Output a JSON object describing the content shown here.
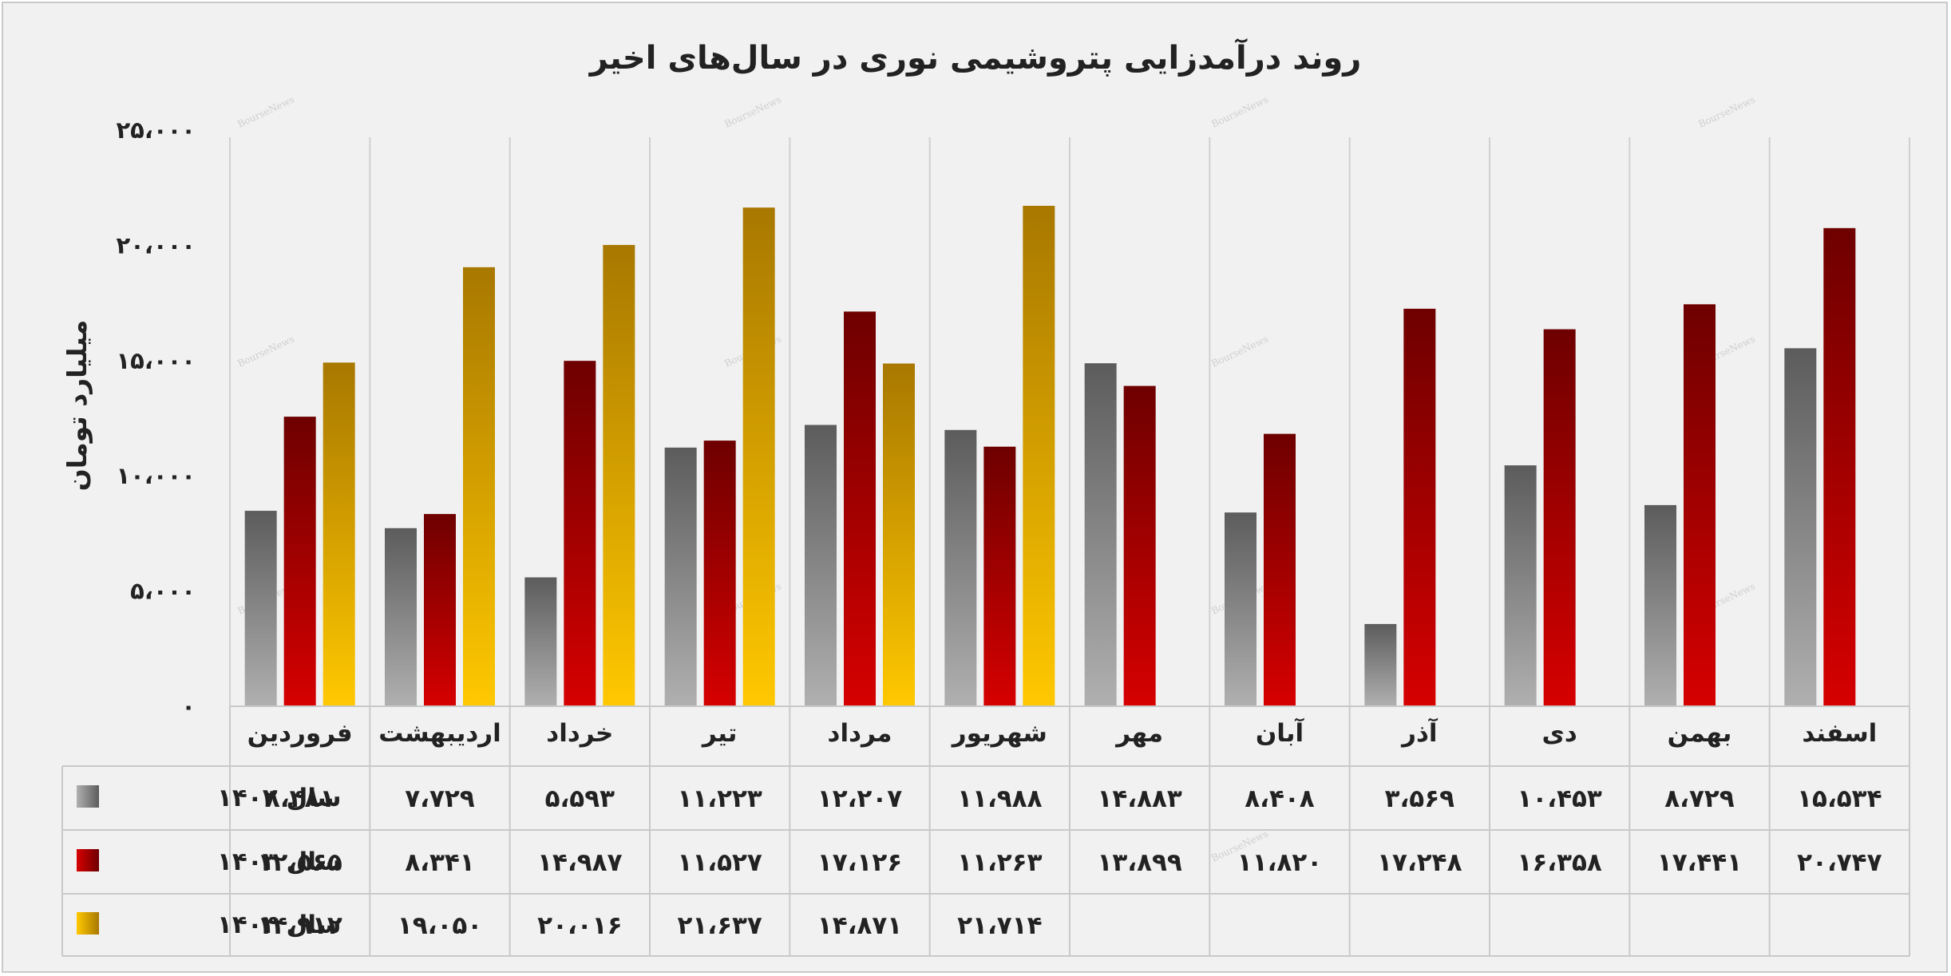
{
  "chart_data": {
    "type": "bar",
    "title": "روند درآمدزایی پتروشیمی نوری در سال‌های اخیر",
    "ylabel": "میلیارد تومان",
    "ylim": [
      0,
      25000
    ],
    "yticks": [
      "۰",
      "۵،۰۰۰",
      "۱۰،۰۰۰",
      "۱۵،۰۰۰",
      "۲۰،۰۰۰",
      "۲۵،۰۰۰"
    ],
    "categories": [
      "فروردین",
      "اردیبهشت",
      "خرداد",
      "تیر",
      "مرداد",
      "شهریور",
      "مهر",
      "آبان",
      "آذر",
      "دی",
      "بهمن",
      "اسفند"
    ],
    "series": [
      {
        "name": "سال ۱۴۰۲",
        "colors": [
          "#5c5c5c",
          "#b0b0b0"
        ],
        "values": [
          8481,
          7729,
          5593,
          11223,
          12207,
          11988,
          14883,
          8408,
          3569,
          10453,
          8729,
          15534
        ],
        "labels": [
          "۸،۴۸۱",
          "۷،۷۲۹",
          "۵،۵۹۳",
          "۱۱،۲۲۳",
          "۱۲،۲۰۷",
          "۱۱،۹۸۸",
          "۱۴،۸۸۳",
          "۸،۴۰۸",
          "۳،۵۶۹",
          "۱۰،۴۵۳",
          "۸،۷۲۹",
          "۱۵،۵۳۴"
        ]
      },
      {
        "name": "سال ۱۴۰۳",
        "colors": [
          "#6e0000",
          "#d60000"
        ],
        "values": [
          12565,
          8341,
          14987,
          11527,
          17126,
          11263,
          13899,
          11820,
          17248,
          16358,
          17441,
          20747
        ],
        "labels": [
          "۱۲،۵۶۵",
          "۸،۳۴۱",
          "۱۴،۹۸۷",
          "۱۱،۵۲۷",
          "۱۷،۱۲۶",
          "۱۱،۲۶۳",
          "۱۳،۸۹۹",
          "۱۱،۸۲۰",
          "۱۷،۲۴۸",
          "۱۶،۳۵۸",
          "۱۷،۴۴۱",
          "۲۰،۷۴۷"
        ]
      },
      {
        "name": "سال ۱۴۰۴",
        "colors": [
          "#a87800",
          "#ffc800"
        ],
        "values": [
          14912,
          19050,
          20016,
          21637,
          14871,
          21714,
          null,
          null,
          null,
          null,
          null,
          null
        ],
        "labels": [
          "۱۴،۹۱۲",
          "۱۹،۰۵۰",
          "۲۰،۰۱۶",
          "۲۱،۶۳۷",
          "۱۴،۸۷۱",
          "۲۱،۷۱۴",
          "",
          "",
          "",
          "",
          "",
          ""
        ]
      }
    ],
    "grid": "vertical",
    "legend": "data-table-left",
    "watermark": "BourseNews"
  }
}
